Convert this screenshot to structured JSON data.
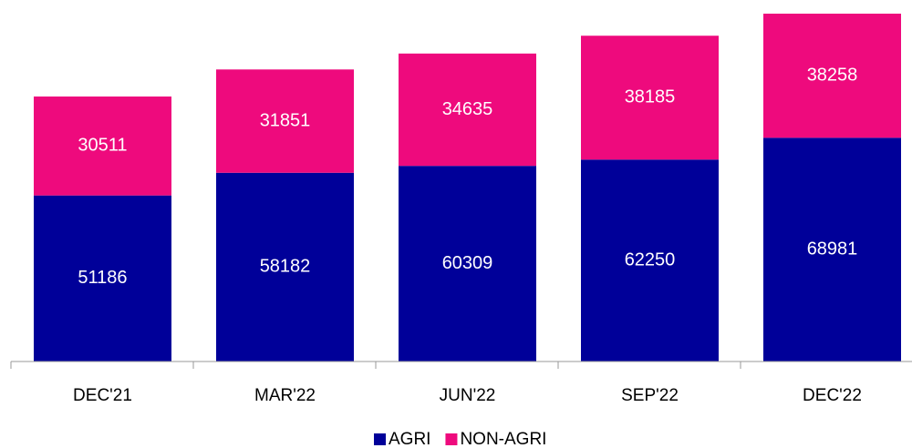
{
  "chart_data": {
    "type": "stacked_bar",
    "categories": [
      "DEC'21",
      "MAR'22",
      "JUN'22",
      "SEP'22",
      "DEC'22"
    ],
    "series": [
      {
        "name": "AGRI",
        "color": "#000099",
        "values": [
          51186,
          58182,
          60309,
          62250,
          68981
        ]
      },
      {
        "name": "NON-AGRI",
        "color": "#ee0a7d",
        "values": [
          30511,
          31851,
          34635,
          38185,
          38258
        ]
      }
    ]
  }
}
